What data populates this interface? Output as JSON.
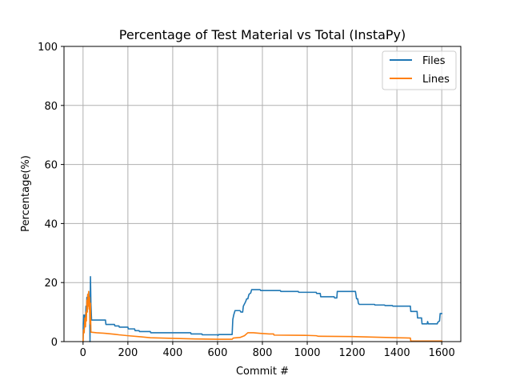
{
  "chart_data": {
    "type": "line",
    "title": "Percentage of Test Material vs Total (InstaPy)",
    "xlabel": "Commit #",
    "ylabel": "Percentage(%)",
    "xlim": [
      -85,
      1685
    ],
    "ylim": [
      0,
      100
    ],
    "xticks": [
      0,
      200,
      400,
      600,
      800,
      1000,
      1200,
      1400,
      1600
    ],
    "yticks": [
      0,
      20,
      40,
      60,
      80,
      100
    ],
    "grid": true,
    "legend_position": "top-right",
    "series": [
      {
        "name": "Files",
        "color": "#1f77b4",
        "points": [
          [
            0,
            0
          ],
          [
            1,
            6
          ],
          [
            3,
            9
          ],
          [
            5,
            6
          ],
          [
            8,
            9
          ],
          [
            11,
            8
          ],
          [
            13,
            12
          ],
          [
            15,
            9
          ],
          [
            17,
            15
          ],
          [
            19,
            12
          ],
          [
            21,
            16
          ],
          [
            23,
            14
          ],
          [
            25,
            17
          ],
          [
            27,
            13
          ],
          [
            29,
            15
          ],
          [
            31,
            0
          ],
          [
            33,
            22
          ],
          [
            35,
            13
          ],
          [
            38,
            7.3
          ],
          [
            100,
            7.3
          ],
          [
            102,
            5.8
          ],
          [
            140,
            5.8
          ],
          [
            142,
            5.3
          ],
          [
            160,
            5.3
          ],
          [
            162,
            4.9
          ],
          [
            200,
            4.9
          ],
          [
            202,
            4.3
          ],
          [
            230,
            4.3
          ],
          [
            232,
            3.7
          ],
          [
            250,
            3.7
          ],
          [
            252,
            3.4
          ],
          [
            300,
            3.4
          ],
          [
            302,
            3.0
          ],
          [
            480,
            3.0
          ],
          [
            482,
            2.6
          ],
          [
            530,
            2.6
          ],
          [
            532,
            2.3
          ],
          [
            600,
            2.3
          ],
          [
            602,
            2.1
          ],
          [
            605,
            2.4
          ],
          [
            665,
            2.4
          ],
          [
            668,
            7.5
          ],
          [
            672,
            9.0
          ],
          [
            678,
            10.5
          ],
          [
            700,
            10.5
          ],
          [
            704,
            10.0
          ],
          [
            712,
            10.0
          ],
          [
            715,
            12.0
          ],
          [
            725,
            13.5
          ],
          [
            730,
            14.5
          ],
          [
            735,
            14.5
          ],
          [
            740,
            16.0
          ],
          [
            748,
            16.5
          ],
          [
            752,
            17.6
          ],
          [
            790,
            17.6
          ],
          [
            792,
            17.3
          ],
          [
            880,
            17.3
          ],
          [
            882,
            17.0
          ],
          [
            960,
            17.0
          ],
          [
            962,
            16.7
          ],
          [
            1040,
            16.7
          ],
          [
            1042,
            16.3
          ],
          [
            1058,
            16.3
          ],
          [
            1060,
            15.2
          ],
          [
            1120,
            15.2
          ],
          [
            1122,
            14.8
          ],
          [
            1132,
            14.8
          ],
          [
            1134,
            17.0
          ],
          [
            1215,
            17.0
          ],
          [
            1220,
            14.5
          ],
          [
            1225,
            14.5
          ],
          [
            1228,
            13.0
          ],
          [
            1232,
            12.6
          ],
          [
            1300,
            12.6
          ],
          [
            1302,
            12.4
          ],
          [
            1345,
            12.4
          ],
          [
            1347,
            12.2
          ],
          [
            1380,
            12.2
          ],
          [
            1382,
            12.0
          ],
          [
            1460,
            12.0
          ],
          [
            1462,
            10.2
          ],
          [
            1490,
            10.2
          ],
          [
            1492,
            8.0
          ],
          [
            1510,
            8.0
          ],
          [
            1512,
            6.0
          ],
          [
            1535,
            6.0
          ],
          [
            1537,
            6.8
          ],
          [
            1540,
            6.0
          ],
          [
            1580,
            6.0
          ],
          [
            1582,
            6.5
          ],
          [
            1590,
            7.0
          ],
          [
            1593,
            9.5
          ],
          [
            1603,
            9.5
          ]
        ]
      },
      {
        "name": "Lines",
        "color": "#ff7f0e",
        "points": [
          [
            0,
            0
          ],
          [
            2,
            4
          ],
          [
            5,
            3
          ],
          [
            8,
            8
          ],
          [
            11,
            5
          ],
          [
            13,
            10
          ],
          [
            15,
            7
          ],
          [
            17,
            14
          ],
          [
            19,
            10
          ],
          [
            21,
            16
          ],
          [
            23,
            12
          ],
          [
            25,
            17
          ],
          [
            27,
            11
          ],
          [
            29,
            15
          ],
          [
            31,
            6
          ],
          [
            33,
            13
          ],
          [
            35,
            3.2
          ],
          [
            60,
            3.0
          ],
          [
            100,
            2.8
          ],
          [
            140,
            2.5
          ],
          [
            160,
            2.3
          ],
          [
            200,
            2.0
          ],
          [
            260,
            1.6
          ],
          [
            300,
            1.3
          ],
          [
            400,
            1.1
          ],
          [
            500,
            0.9
          ],
          [
            600,
            0.8
          ],
          [
            665,
            0.8
          ],
          [
            670,
            1.2
          ],
          [
            700,
            1.4
          ],
          [
            720,
            2.0
          ],
          [
            735,
            3.0
          ],
          [
            760,
            3.0
          ],
          [
            790,
            2.8
          ],
          [
            830,
            2.6
          ],
          [
            850,
            2.6
          ],
          [
            852,
            2.2
          ],
          [
            1000,
            2.1
          ],
          [
            1040,
            2.0
          ],
          [
            1050,
            1.8
          ],
          [
            1200,
            1.7
          ],
          [
            1300,
            1.5
          ],
          [
            1400,
            1.3
          ],
          [
            1460,
            1.2
          ],
          [
            1462,
            0.2
          ],
          [
            1603,
            0.2
          ]
        ]
      }
    ]
  }
}
